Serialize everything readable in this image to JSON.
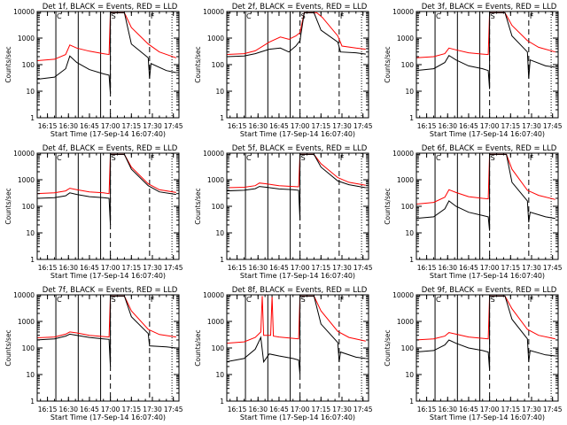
{
  "chart_data": {
    "type": "line",
    "x_tick_labels": [
      "16:15",
      "16:30",
      "16:45",
      "17:00",
      "17:15",
      "17:30",
      "17:45"
    ],
    "x_range": [
      "16:07:40",
      "17:49:00"
    ],
    "y_scale": "log",
    "y_range": [
      1,
      10000
    ],
    "y_tick_labels": [
      "1",
      "10",
      "100",
      "1000",
      "10000"
    ],
    "ylabel": "Counts/sec",
    "xlabel": "Start Time (17-Sep-14 16:07:40)",
    "colors": {
      "events": "#000000",
      "lld": "#ff0000",
      "axes": "#000000"
    },
    "markers": {
      "solid_lines": [
        "16:21",
        "16:37",
        "16:53"
      ],
      "dashed_lines": [
        "17:00",
        "17:28"
      ],
      "dotted_lines": [
        "17:44"
      ]
    },
    "panels": [
      {
        "title": "Det 1f, BLACK = Events, RED = LLD",
        "flags": [
          "C",
          "S",
          "F"
        ],
        "events": [
          [
            "16:07",
            28
          ],
          [
            "16:20",
            34
          ],
          [
            "16:28",
            70
          ],
          [
            "16:31",
            210
          ],
          [
            "16:36",
            120
          ],
          [
            "16:45",
            65
          ],
          [
            "16:55",
            45
          ],
          [
            "16:59",
            40
          ],
          [
            "17:00",
            8
          ],
          [
            "17:00",
            9000
          ],
          [
            "17:10",
            9000
          ],
          [
            "17:15",
            600
          ],
          [
            "17:27",
            180
          ],
          [
            "17:28",
            30
          ],
          [
            "17:29",
            110
          ],
          [
            "17:40",
            60
          ],
          [
            "17:47",
            50
          ]
        ],
        "lld": [
          [
            "16:07",
            140
          ],
          [
            "16:20",
            160
          ],
          [
            "16:28",
            240
          ],
          [
            "16:31",
            550
          ],
          [
            "16:36",
            420
          ],
          [
            "16:45",
            320
          ],
          [
            "16:55",
            260
          ],
          [
            "16:59",
            240
          ],
          [
            "17:00",
            9000
          ],
          [
            "17:10",
            9000
          ],
          [
            "17:15",
            2500
          ],
          [
            "17:27",
            600
          ],
          [
            "17:35",
            300
          ],
          [
            "17:47",
            180
          ]
        ]
      },
      {
        "title": "Det 2f, BLACK = Events, RED = LLD",
        "flags": [
          "C",
          "S",
          "F"
        ],
        "events": [
          [
            "16:07",
            200
          ],
          [
            "16:20",
            210
          ],
          [
            "16:28",
            260
          ],
          [
            "16:38",
            380
          ],
          [
            "16:46",
            420
          ],
          [
            "16:52",
            300
          ],
          [
            "16:57",
            500
          ],
          [
            "17:00",
            800
          ],
          [
            "17:03",
            9000
          ],
          [
            "17:10",
            9000
          ],
          [
            "17:15",
            2000
          ],
          [
            "17:27",
            700
          ],
          [
            "17:29",
            300
          ],
          [
            "17:40",
            280
          ],
          [
            "17:47",
            250
          ]
        ],
        "lld": [
          [
            "16:07",
            240
          ],
          [
            "16:20",
            260
          ],
          [
            "16:28",
            330
          ],
          [
            "16:38",
            700
          ],
          [
            "16:46",
            1100
          ],
          [
            "16:52",
            900
          ],
          [
            "16:57",
            1200
          ],
          [
            "17:00",
            1600
          ],
          [
            "17:03",
            9000
          ],
          [
            "17:12",
            9000
          ],
          [
            "17:16",
            6000
          ],
          [
            "17:27",
            1200
          ],
          [
            "17:30",
            500
          ],
          [
            "17:40",
            420
          ],
          [
            "17:47",
            380
          ]
        ]
      },
      {
        "title": "Det 3f, BLACK = Events, RED = LLD",
        "flags": [
          "C",
          "S",
          "F"
        ],
        "events": [
          [
            "16:07",
            60
          ],
          [
            "16:20",
            70
          ],
          [
            "16:28",
            120
          ],
          [
            "16:31",
            220
          ],
          [
            "16:36",
            150
          ],
          [
            "16:45",
            90
          ],
          [
            "16:55",
            70
          ],
          [
            "16:59",
            60
          ],
          [
            "17:00",
            12
          ],
          [
            "17:00",
            9000
          ],
          [
            "17:11",
            9000
          ],
          [
            "17:16",
            1200
          ],
          [
            "17:27",
            300
          ],
          [
            "17:28",
            30
          ],
          [
            "17:29",
            150
          ],
          [
            "17:40",
            90
          ],
          [
            "17:47",
            80
          ]
        ],
        "lld": [
          [
            "16:07",
            180
          ],
          [
            "16:20",
            200
          ],
          [
            "16:28",
            260
          ],
          [
            "16:31",
            420
          ],
          [
            "16:36",
            360
          ],
          [
            "16:45",
            280
          ],
          [
            "16:55",
            250
          ],
          [
            "16:59",
            240
          ],
          [
            "17:00",
            9000
          ],
          [
            "17:11",
            9000
          ],
          [
            "17:16",
            3000
          ],
          [
            "17:27",
            800
          ],
          [
            "17:35",
            450
          ],
          [
            "17:47",
            300
          ]
        ]
      },
      {
        "title": "Det 4f, BLACK = Events, RED = LLD",
        "flags": [
          "C",
          "S",
          "F"
        ],
        "events": [
          [
            "16:07",
            200
          ],
          [
            "16:20",
            210
          ],
          [
            "16:28",
            250
          ],
          [
            "16:31",
            320
          ],
          [
            "16:36",
            280
          ],
          [
            "16:45",
            230
          ],
          [
            "16:55",
            210
          ],
          [
            "16:59",
            200
          ],
          [
            "17:00",
            20
          ],
          [
            "17:00",
            9000
          ],
          [
            "17:10",
            9000
          ],
          [
            "17:15",
            2500
          ],
          [
            "17:27",
            600
          ],
          [
            "17:35",
            350
          ],
          [
            "17:47",
            280
          ]
        ],
        "lld": [
          [
            "16:07",
            300
          ],
          [
            "16:20",
            320
          ],
          [
            "16:28",
            380
          ],
          [
            "16:31",
            480
          ],
          [
            "16:36",
            420
          ],
          [
            "16:45",
            350
          ],
          [
            "16:55",
            320
          ],
          [
            "16:59",
            300
          ],
          [
            "17:00",
            9000
          ],
          [
            "17:10",
            9000
          ],
          [
            "17:15",
            3000
          ],
          [
            "17:27",
            700
          ],
          [
            "17:35",
            420
          ],
          [
            "17:47",
            330
          ]
        ]
      },
      {
        "title": "Det 5f, BLACK = Events, RED = LLD",
        "flags": [
          "C",
          "S",
          "F"
        ],
        "events": [
          [
            "16:07",
            380
          ],
          [
            "16:20",
            400
          ],
          [
            "16:28",
            460
          ],
          [
            "16:31",
            560
          ],
          [
            "16:36",
            520
          ],
          [
            "16:45",
            450
          ],
          [
            "16:55",
            420
          ],
          [
            "16:59",
            400
          ],
          [
            "17:00",
            30
          ],
          [
            "17:00",
            9000
          ],
          [
            "17:10",
            9000
          ],
          [
            "17:15",
            3000
          ],
          [
            "17:27",
            900
          ],
          [
            "17:35",
            650
          ],
          [
            "17:47",
            500
          ]
        ],
        "lld": [
          [
            "16:07",
            500
          ],
          [
            "16:20",
            520
          ],
          [
            "16:28",
            600
          ],
          [
            "16:31",
            750
          ],
          [
            "16:36",
            700
          ],
          [
            "16:45",
            600
          ],
          [
            "16:55",
            560
          ],
          [
            "16:59",
            540
          ],
          [
            "17:00",
            9000
          ],
          [
            "17:10",
            9000
          ],
          [
            "17:15",
            4000
          ],
          [
            "17:27",
            1200
          ],
          [
            "17:35",
            800
          ],
          [
            "17:47",
            620
          ]
        ]
      },
      {
        "title": "Det 6f, BLACK = Events, RED = LLD",
        "flags": [
          "C",
          "S",
          "F"
        ],
        "events": [
          [
            "16:07",
            35
          ],
          [
            "16:20",
            40
          ],
          [
            "16:28",
            80
          ],
          [
            "16:31",
            160
          ],
          [
            "16:36",
            100
          ],
          [
            "16:45",
            60
          ],
          [
            "16:55",
            45
          ],
          [
            "16:59",
            40
          ],
          [
            "17:00",
            12
          ],
          [
            "17:00",
            9000
          ],
          [
            "17:12",
            9000
          ],
          [
            "17:16",
            800
          ],
          [
            "17:27",
            160
          ],
          [
            "17:28",
            25
          ],
          [
            "17:29",
            60
          ],
          [
            "17:40",
            40
          ],
          [
            "17:47",
            35
          ]
        ],
        "lld": [
          [
            "16:07",
            120
          ],
          [
            "16:20",
            140
          ],
          [
            "16:28",
            220
          ],
          [
            "16:31",
            420
          ],
          [
            "16:36",
            330
          ],
          [
            "16:45",
            230
          ],
          [
            "16:55",
            200
          ],
          [
            "16:59",
            190
          ],
          [
            "17:00",
            9000
          ],
          [
            "17:12",
            9000
          ],
          [
            "17:16",
            2500
          ],
          [
            "17:27",
            400
          ],
          [
            "17:35",
            260
          ],
          [
            "17:47",
            180
          ]
        ]
      },
      {
        "title": "Det 7f, BLACK = Events, RED = LLD",
        "flags": [
          "C",
          "S",
          "F"
        ],
        "events": [
          [
            "16:07",
            200
          ],
          [
            "16:20",
            220
          ],
          [
            "16:28",
            280
          ],
          [
            "16:31",
            330
          ],
          [
            "16:36",
            300
          ],
          [
            "16:45",
            250
          ],
          [
            "16:55",
            220
          ],
          [
            "16:59",
            210
          ],
          [
            "17:00",
            20
          ],
          [
            "17:00",
            9000
          ],
          [
            "17:10",
            9000
          ],
          [
            "17:15",
            1500
          ],
          [
            "17:27",
            350
          ],
          [
            "17:28",
            120
          ],
          [
            "17:40",
            110
          ],
          [
            "17:47",
            100
          ]
        ],
        "lld": [
          [
            "16:07",
            240
          ],
          [
            "16:20",
            260
          ],
          [
            "16:28",
            330
          ],
          [
            "16:31",
            400
          ],
          [
            "16:36",
            370
          ],
          [
            "16:45",
            300
          ],
          [
            "16:55",
            270
          ],
          [
            "16:59",
            260
          ],
          [
            "17:00",
            9000
          ],
          [
            "17:10",
            9000
          ],
          [
            "17:15",
            2500
          ],
          [
            "17:27",
            500
          ],
          [
            "17:35",
            320
          ],
          [
            "17:47",
            260
          ]
        ]
      },
      {
        "title": "Det 8f, BLACK = Events, RED = LLD",
        "flags": [
          "C",
          "S",
          "F"
        ],
        "events": [
          [
            "16:07",
            30
          ],
          [
            "16:20",
            40
          ],
          [
            "16:28",
            90
          ],
          [
            "16:32",
            250
          ],
          [
            "16:34",
            30
          ],
          [
            "16:38",
            60
          ],
          [
            "16:45",
            50
          ],
          [
            "16:55",
            40
          ],
          [
            "16:59",
            35
          ],
          [
            "17:00",
            10
          ],
          [
            "17:00",
            9000
          ],
          [
            "17:10",
            9000
          ],
          [
            "17:15",
            800
          ],
          [
            "17:27",
            160
          ],
          [
            "17:28",
            30
          ],
          [
            "17:29",
            70
          ],
          [
            "17:40",
            45
          ],
          [
            "17:47",
            40
          ]
        ],
        "lld": [
          [
            "16:07",
            150
          ],
          [
            "16:20",
            170
          ],
          [
            "16:28",
            250
          ],
          [
            "16:32",
            400
          ],
          [
            "16:33",
            9000
          ],
          [
            "16:34",
            300
          ],
          [
            "16:39",
            300
          ],
          [
            "16:40",
            9000
          ],
          [
            "16:41",
            280
          ],
          [
            "16:45",
            260
          ],
          [
            "16:55",
            230
          ],
          [
            "16:59",
            220
          ],
          [
            "17:00",
            9000
          ],
          [
            "17:10",
            9000
          ],
          [
            "17:15",
            2500
          ],
          [
            "17:27",
            420
          ],
          [
            "17:35",
            250
          ],
          [
            "17:47",
            180
          ]
        ]
      },
      {
        "title": "Det 9f, BLACK = Events, RED = LLD",
        "flags": [
          "C",
          "S",
          "F"
        ],
        "events": [
          [
            "16:07",
            70
          ],
          [
            "16:20",
            80
          ],
          [
            "16:28",
            130
          ],
          [
            "16:31",
            200
          ],
          [
            "16:36",
            150
          ],
          [
            "16:45",
            100
          ],
          [
            "16:55",
            80
          ],
          [
            "16:59",
            70
          ],
          [
            "17:00",
            15
          ],
          [
            "17:00",
            9000
          ],
          [
            "17:11",
            9000
          ],
          [
            "17:16",
            1200
          ],
          [
            "17:27",
            220
          ],
          [
            "17:28",
            30
          ],
          [
            "17:29",
            80
          ],
          [
            "17:40",
            55
          ],
          [
            "17:47",
            50
          ]
        ],
        "lld": [
          [
            "16:07",
            200
          ],
          [
            "16:20",
            220
          ],
          [
            "16:28",
            280
          ],
          [
            "16:31",
            380
          ],
          [
            "16:36",
            330
          ],
          [
            "16:45",
            260
          ],
          [
            "16:55",
            230
          ],
          [
            "16:59",
            220
          ],
          [
            "17:00",
            9000
          ],
          [
            "17:11",
            9000
          ],
          [
            "17:16",
            3000
          ],
          [
            "17:27",
            500
          ],
          [
            "17:35",
            300
          ],
          [
            "17:47",
            220
          ]
        ]
      }
    ]
  }
}
